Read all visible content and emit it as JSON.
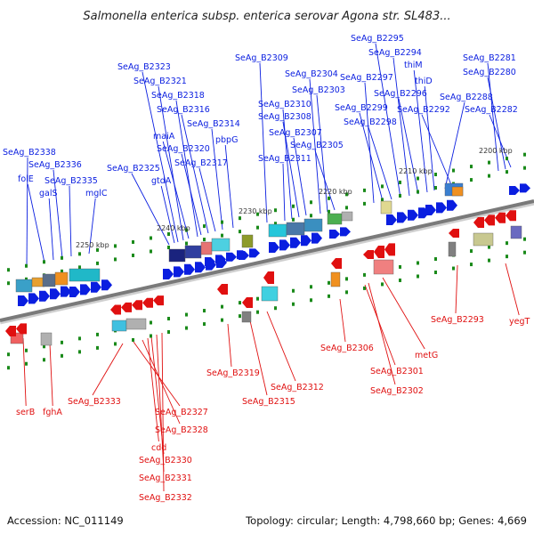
{
  "title": "Salmonella enterica subsp. enterica serovar Agona str. SL483...",
  "footer": {
    "accession": "Accession: NC_011149",
    "topology": "Topology: circular; Length: 4,798,660 bp; Genes: 4,669"
  },
  "colors": {
    "forward": "#0a1ee0",
    "reverse": "#e01010",
    "backbone": "#7a7a7a",
    "tick": "#1a8a1a"
  },
  "scale_labels": [
    "2250 kbp",
    "2240 kbp",
    "2230 kbp",
    "2220 kbp",
    "2210 kbp",
    "2200 kbp"
  ],
  "forward_genes": [
    "SeAg_B2338",
    "folE",
    "galS",
    "SeAg_B2336",
    "SeAg_B2335",
    "mglC",
    "SeAg_B2325",
    "gtdA",
    "SeAg_B2323",
    "SeAg_B2321",
    "maiA",
    "SeAg_B2318",
    "SeAg_B2320",
    "SeAg_B2316",
    "SeAg_B2317",
    "SeAg_B2314",
    "pbpG",
    "SeAg_B2309",
    "SeAg_B2311",
    "SeAg_B2310",
    "SeAg_B2308",
    "SeAg_B2307",
    "SeAg_B2304",
    "SeAg_B2303",
    "SeAg_B2305",
    "SeAg_B2297",
    "SeAg_B2299",
    "SeAg_B2298",
    "SeAg_B2295",
    "SeAg_B2294",
    "SeAg_B2296",
    "thiM",
    "thiD",
    "SeAg_B2288",
    "SeAg_B2292",
    "SeAg_B2281",
    "SeAg_B2280",
    "SeAg_B2282"
  ],
  "reverse_genes": [
    "serB",
    "fghA",
    "SeAg_B2333",
    "SeAg_B2327",
    "SeAg_B2328",
    "cdd",
    "SeAg_B2330",
    "SeAg_B2331",
    "SeAg_B2332",
    "SeAg_B2319",
    "SeAg_B2315",
    "SeAg_B2312",
    "SeAg_B2306",
    "SeAg_B2301",
    "SeAg_B2302",
    "metG",
    "SeAg_B2293",
    "yegT"
  ]
}
